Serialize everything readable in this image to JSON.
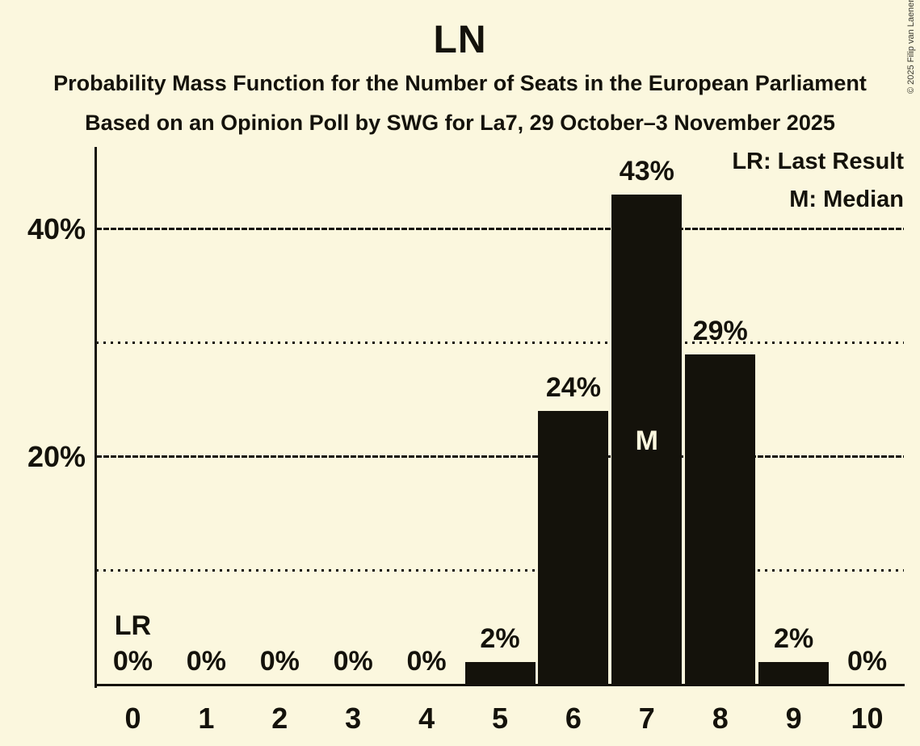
{
  "header": {
    "title": "LN",
    "subtitle1": "Probability Mass Function for the Number of Seats in the European Parliament",
    "subtitle2": "Based on an Opinion Poll by SWG for La7, 29 October–3 November 2025"
  },
  "legend": {
    "lr": "LR: Last Result",
    "m": "M: Median"
  },
  "copyright": "© 2025 Filip van Laenen",
  "colors": {
    "background": "#FBF7DE",
    "bar": "#14120B",
    "text": "#14120B",
    "median_letter": "#FBF7DE"
  },
  "chart_data": {
    "type": "bar",
    "title": "LN",
    "categories": [
      "0",
      "1",
      "2",
      "3",
      "4",
      "5",
      "6",
      "7",
      "8",
      "9",
      "10"
    ],
    "values": [
      0,
      0,
      0,
      0,
      0,
      2,
      24,
      43,
      29,
      2,
      0
    ],
    "bar_labels": [
      "0%",
      "0%",
      "0%",
      "0%",
      "0%",
      "2%",
      "24%",
      "43%",
      "29%",
      "2%",
      "0%"
    ],
    "ylim": [
      0,
      47.2
    ],
    "grid": true,
    "gridlines": [
      {
        "value": 10,
        "style": "dotted",
        "label": ""
      },
      {
        "value": 20,
        "style": "dashed",
        "label": "20%"
      },
      {
        "value": 30,
        "style": "dotted",
        "label": ""
      },
      {
        "value": 40,
        "style": "dashed",
        "label": "40%"
      }
    ],
    "legend_position": "top-right",
    "annotations": {
      "last_result": {
        "category": "0",
        "label": "LR"
      },
      "median": {
        "category": "7",
        "label": "M"
      }
    }
  }
}
